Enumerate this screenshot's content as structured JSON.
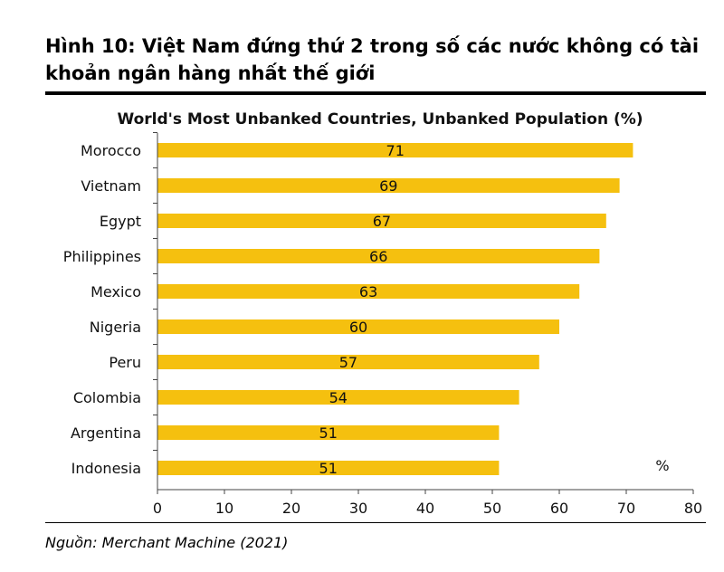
{
  "figure": {
    "title": "Hình 10: Việt Nam đứng thứ 2 trong số các nước không có tài khoản ngân hàng nhất thế giới",
    "source": "Nguồn: Merchant Machine (2021)"
  },
  "chart_data": {
    "type": "bar",
    "orientation": "horizontal",
    "title": "World's Most Unbanked Countries, Unbanked Population (%)",
    "categories": [
      "Morocco",
      "Vietnam",
      "Egypt",
      "Philippines",
      "Mexico",
      "Nigeria",
      "Peru",
      "Colombia",
      "Argentina",
      "Indonesia"
    ],
    "values": [
      71,
      69,
      67,
      66,
      63,
      60,
      57,
      54,
      51,
      51
    ],
    "unit_label": "%",
    "xlim": [
      0,
      80
    ],
    "xticks": [
      0,
      10,
      20,
      30,
      40,
      50,
      60,
      70,
      80
    ],
    "bar_color": "#F5C00F",
    "grid": false,
    "legend": "none"
  }
}
